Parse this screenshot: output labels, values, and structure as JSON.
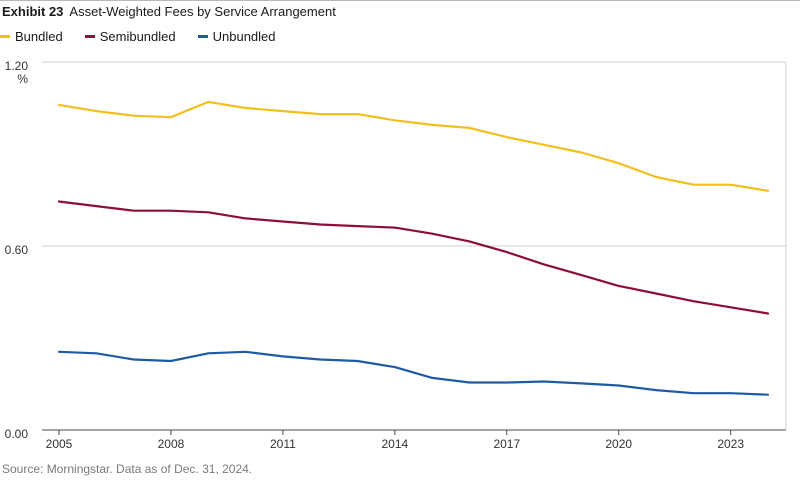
{
  "header": {
    "exhibit": "Exhibit 23",
    "title": "Asset-Weighted Fees by Service Arrangement"
  },
  "footer": {
    "source": "Source: Morningstar. Data as of Dec. 31, 2024."
  },
  "chart_data": {
    "type": "line",
    "title": "Asset-Weighted Fees by Service Arrangement",
    "ylabel": "%",
    "xlabel": "",
    "ylim": [
      0.0,
      1.2
    ],
    "xlim": [
      2005,
      2024
    ],
    "yticks": [
      0.0,
      0.6,
      1.2
    ],
    "ytick_labels": [
      "0.00",
      "0.60",
      "1.20"
    ],
    "xticks": [
      2005,
      2008,
      2011,
      2014,
      2017,
      2020,
      2023
    ],
    "xtick_labels": [
      "2005",
      "2008",
      "2011",
      "2014",
      "2017",
      "2020",
      "2023"
    ],
    "grid": "horizontal",
    "legend": "top-left",
    "x": [
      2005,
      2006,
      2007,
      2008,
      2009,
      2010,
      2011,
      2012,
      2013,
      2014,
      2015,
      2016,
      2017,
      2018,
      2019,
      2020,
      2021,
      2022,
      2023,
      2024
    ],
    "series": [
      {
        "name": "Bundled",
        "color": "#f2c01e",
        "values": [
          1.06,
          1.04,
          1.025,
          1.02,
          1.07,
          1.05,
          1.04,
          1.03,
          1.03,
          1.01,
          0.995,
          0.985,
          0.955,
          0.93,
          0.905,
          0.87,
          0.825,
          0.8,
          0.8,
          0.78
        ]
      },
      {
        "name": "Semibundled",
        "color": "#8b0f3c",
        "values": [
          0.745,
          0.73,
          0.715,
          0.715,
          0.71,
          0.69,
          0.68,
          0.67,
          0.665,
          0.66,
          0.64,
          0.615,
          0.58,
          0.54,
          0.505,
          0.47,
          0.445,
          0.42,
          0.4,
          0.38
        ]
      },
      {
        "name": "Unbundled",
        "color": "#1f5aa6",
        "values": [
          0.255,
          0.25,
          0.23,
          0.225,
          0.25,
          0.255,
          0.24,
          0.23,
          0.225,
          0.205,
          0.17,
          0.155,
          0.155,
          0.158,
          0.152,
          0.145,
          0.13,
          0.12,
          0.12,
          0.115
        ]
      }
    ]
  }
}
